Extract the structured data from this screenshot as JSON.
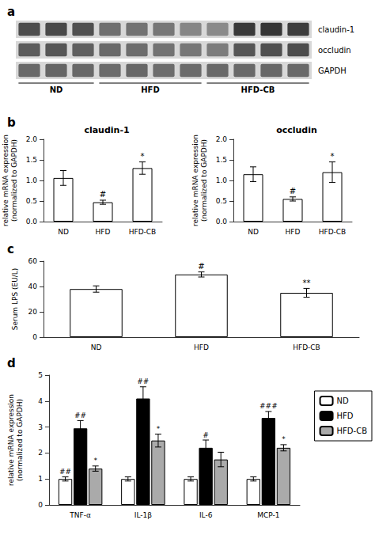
{
  "chart_data": [
    {
      "type": "heatmap",
      "subtitle": "a",
      "categories": [
        null,
        null,
        null,
        null,
        null,
        null,
        null,
        null,
        null,
        null,
        null
      ],
      "rows": [
        "claudin-1",
        "occludin",
        "GAPDH"
      ],
      "values": [
        [
          0.6,
          0.62,
          0.58,
          0.42,
          0.4,
          0.38,
          0.3,
          0.28,
          0.7,
          0.72,
          0.68
        ],
        [
          0.52,
          0.55,
          0.5,
          0.45,
          0.43,
          0.4,
          0.38,
          0.35,
          0.55,
          0.58,
          0.6
        ],
        [
          0.45,
          0.47,
          0.46,
          0.44,
          0.46,
          0.43,
          0.44,
          0.45,
          0.45,
          0.46,
          0.45
        ]
      ],
      "annotations": [
        {
          "text": "ND",
          "lanes": [
            0,
            1,
            2
          ]
        },
        {
          "text": "HFD",
          "lanes": [
            3,
            4,
            5,
            6
          ]
        },
        {
          "text": "HFD-CB",
          "lanes": [
            7,
            8,
            9,
            10
          ]
        }
      ],
      "tick_labels": "y"
    },
    {
      "type": "bar",
      "title": "claudin-1",
      "subtitle": "b",
      "categories": [
        "ND",
        "HFD",
        "HFD-CB"
      ],
      "values": [
        1.06,
        0.47,
        1.3
      ],
      "errors": [
        0.18,
        0.05,
        0.15
      ],
      "annotations": [
        null,
        "#",
        "*"
      ],
      "color": "white",
      "ylim": [
        0,
        2.0
      ],
      "yticks": [
        {
          "value": 0.0,
          "label": "0.0"
        },
        0.5,
        {
          "value": 1.0,
          "label": "1.0"
        },
        1.5,
        {
          "value": 2.0,
          "label": "2.0"
        }
      ],
      "ylabel": "relative mRNA expression\n(normalized to GAPDH)",
      "grid": false
    },
    {
      "type": "bar",
      "title": "occludin",
      "categories": [
        "ND",
        "HFD",
        "HFD-CB"
      ],
      "values": [
        1.15,
        0.55,
        1.2
      ],
      "errors": [
        0.18,
        0.05,
        0.25
      ],
      "annotations": [
        null,
        "#",
        "*"
      ],
      "color": "white",
      "ylim": [
        0,
        2.0
      ],
      "yticks": [
        {
          "value": 0.0,
          "label": "0.0"
        },
        0.5,
        {
          "value": 1.0,
          "label": "1.0"
        },
        1.5,
        {
          "value": 2.0,
          "label": "2.0"
        }
      ],
      "ylabel": "relative mRNA expression\n(normalized to GAPDH)",
      "grid": false
    },
    {
      "type": "bar",
      "subtitle": "c",
      "categories": [
        "ND",
        "HFD",
        "HFD-CB"
      ],
      "values": [
        38.0,
        49.5,
        35.0
      ],
      "errors": [
        2.5,
        2.0,
        3.5
      ],
      "annotations": [
        null,
        "#",
        "**"
      ],
      "color": "white",
      "ylim": [
        0,
        60
      ],
      "yticks": [
        0,
        20,
        40,
        60
      ],
      "ylabel": "Serum LPS (EU/L)",
      "grid": false
    },
    {
      "type": "bar",
      "subtitle": "d",
      "categories": [
        "TNF-α",
        "IL-1β",
        "IL-6",
        "MCP-1"
      ],
      "series": [
        {
          "name": "ND",
          "color": "white",
          "values": [
            1.0,
            1.0,
            1.0,
            1.0
          ],
          "errors": [
            0.08,
            0.08,
            0.08,
            0.08
          ],
          "annotations": [
            "##",
            null,
            null,
            null
          ]
        },
        {
          "name": "HFD",
          "color": "black",
          "values": [
            2.95,
            4.1,
            2.2,
            3.35
          ],
          "errors": [
            0.3,
            0.45,
            0.3,
            0.25
          ],
          "annotations": [
            "##",
            "##",
            "#",
            "###"
          ]
        },
        {
          "name": "HFD-CB",
          "color": "#aaaaaa",
          "values": [
            1.4,
            2.48,
            1.75,
            2.2
          ],
          "errors": [
            0.1,
            0.25,
            0.28,
            0.12
          ],
          "annotations": [
            "*",
            "*",
            null,
            "*"
          ]
        }
      ],
      "ylim": [
        0,
        5
      ],
      "yticks": [
        0,
        1,
        2,
        3,
        4,
        5
      ],
      "ylabel": "relative mRNA expression\n(normalized to GAPDH)",
      "legend": "right",
      "grid": false
    }
  ]
}
